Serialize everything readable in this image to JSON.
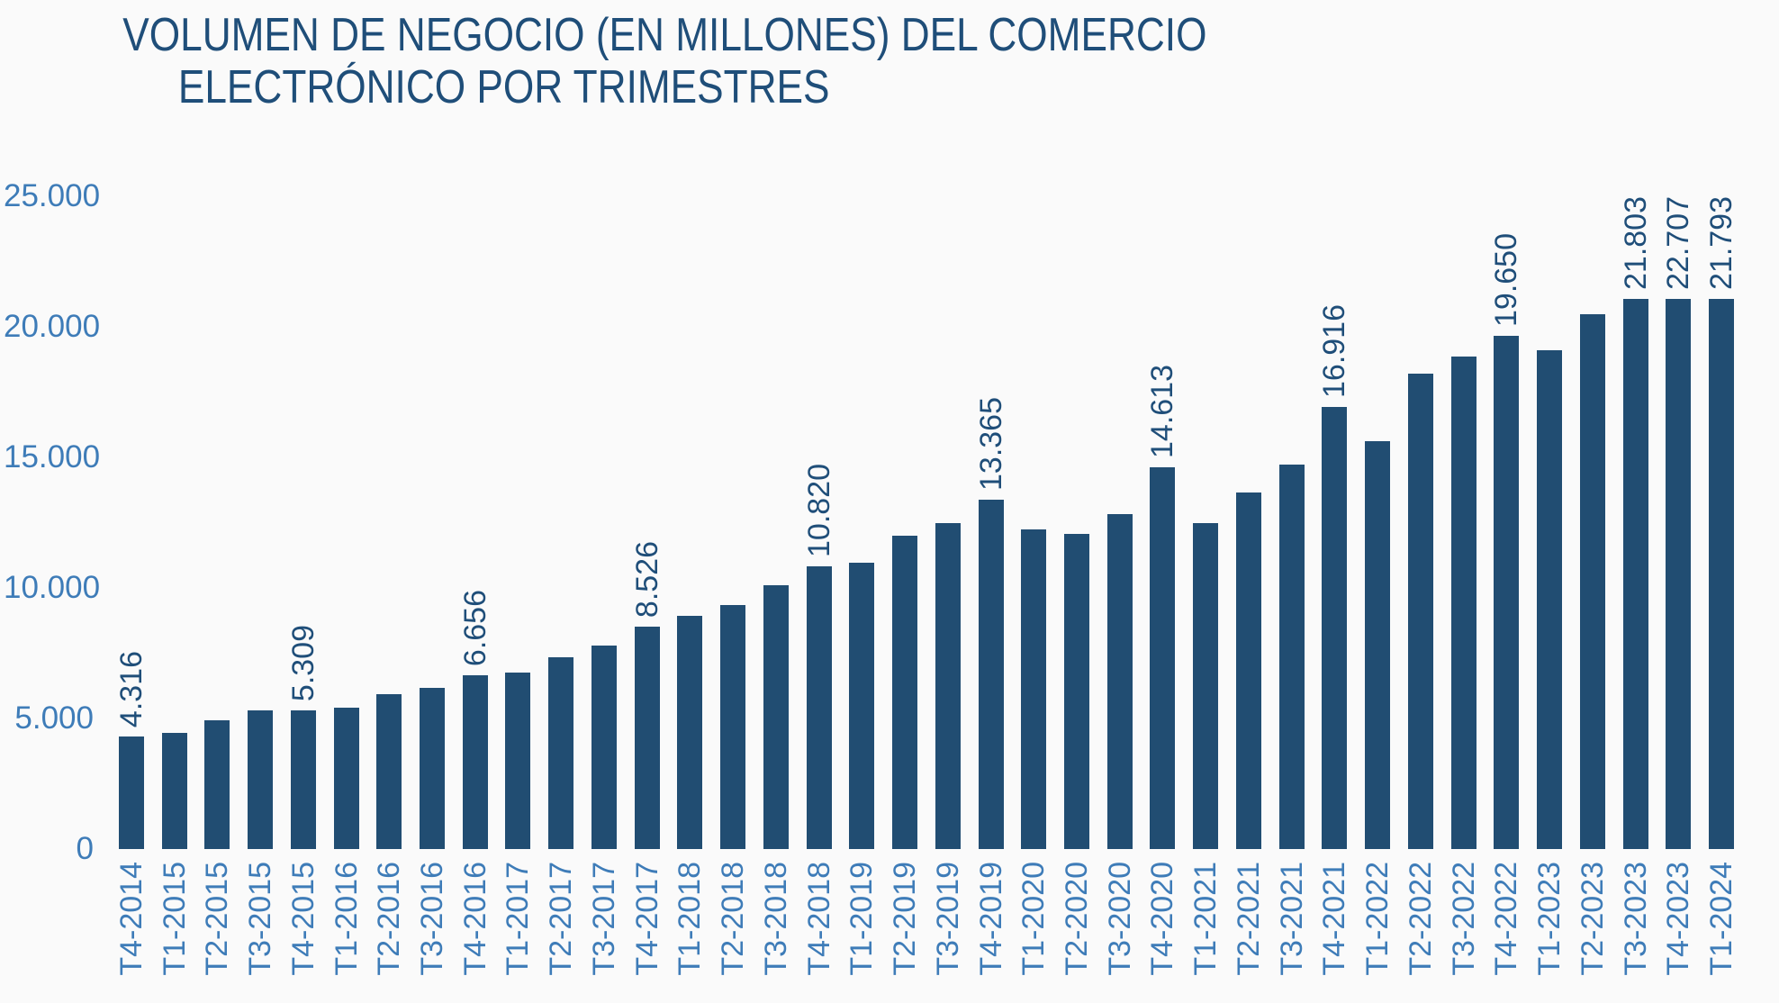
{
  "title": {
    "line1": "VOLUMEN DE NEGOCIO (EN MILLONES) DEL COMERCIO",
    "line2": "ELECTRÓNICO POR TRIMESTRES"
  },
  "colors": {
    "background": "#FAFAFA",
    "title_text": "#1F4E79",
    "bar_fill": "#214D72",
    "axis_label_text": "#3E7CB8",
    "value_label_text": "#1F4E79"
  },
  "y_axis": {
    "ticks": [
      {
        "label": "25.000",
        "value": 25000
      },
      {
        "label": "20.000",
        "value": 20000
      },
      {
        "label": "15.000",
        "value": 15000
      },
      {
        "label": "10.000",
        "value": 10000
      },
      {
        "label": "5.000",
        "value": 5000
      },
      {
        "label": "0",
        "value": 0
      }
    ]
  },
  "chart_data": {
    "type": "bar",
    "title": "VOLUMEN DE NEGOCIO (EN MILLONES) DEL COMERCIO ELECTRÓNICO POR TRIMESTRES",
    "xlabel": "",
    "ylabel": "",
    "ylim": [
      0,
      25000
    ],
    "grid": false,
    "legend": false,
    "categories": [
      "T4-2014",
      "T1-2015",
      "T2-2015",
      "T3-2015",
      "T4-2015",
      "T1-2016",
      "T2-2016",
      "T3-2016",
      "T4-2016",
      "T1-2017",
      "T2-2017",
      "T3-2017",
      "T4-2017",
      "T1-2018",
      "T2-2018",
      "T3-2018",
      "T4-2018",
      "T1-2019",
      "T2-2019",
      "T3-2019",
      "T4-2019",
      "T1-2020",
      "T2-2020",
      "T3-2020",
      "T4-2020",
      "T1-2021",
      "T2-2021",
      "T3-2021",
      "T4-2021",
      "T1-2022",
      "T2-2022",
      "T3-2022",
      "T4-2022",
      "T1-2023",
      "T2-2023",
      "T3-2023",
      "T4-2023",
      "T1-2024"
    ],
    "values": [
      4316,
      4465,
      4946,
      5303,
      5309,
      5414,
      5948,
      6167,
      6656,
      6757,
      7338,
      7785,
      8526,
      8938,
      9333,
      10116,
      10820,
      10969,
      11999,
      12493,
      13365,
      12243,
      12055,
      12823,
      14613,
      12474,
      13661,
      14740,
      16916,
      15627,
      18190,
      18871,
      19650,
      19108,
      20493,
      21803,
      22707,
      21793
    ],
    "labels": [
      "4.316",
      null,
      null,
      null,
      "5.309",
      null,
      null,
      null,
      "6.656",
      null,
      null,
      null,
      "8.526",
      null,
      null,
      null,
      "10.820",
      null,
      null,
      null,
      "13.365",
      null,
      null,
      null,
      "14.613",
      null,
      null,
      null,
      "16.916",
      null,
      null,
      null,
      "19.650",
      null,
      null,
      "21.803",
      "22.707",
      "21.793"
    ]
  }
}
